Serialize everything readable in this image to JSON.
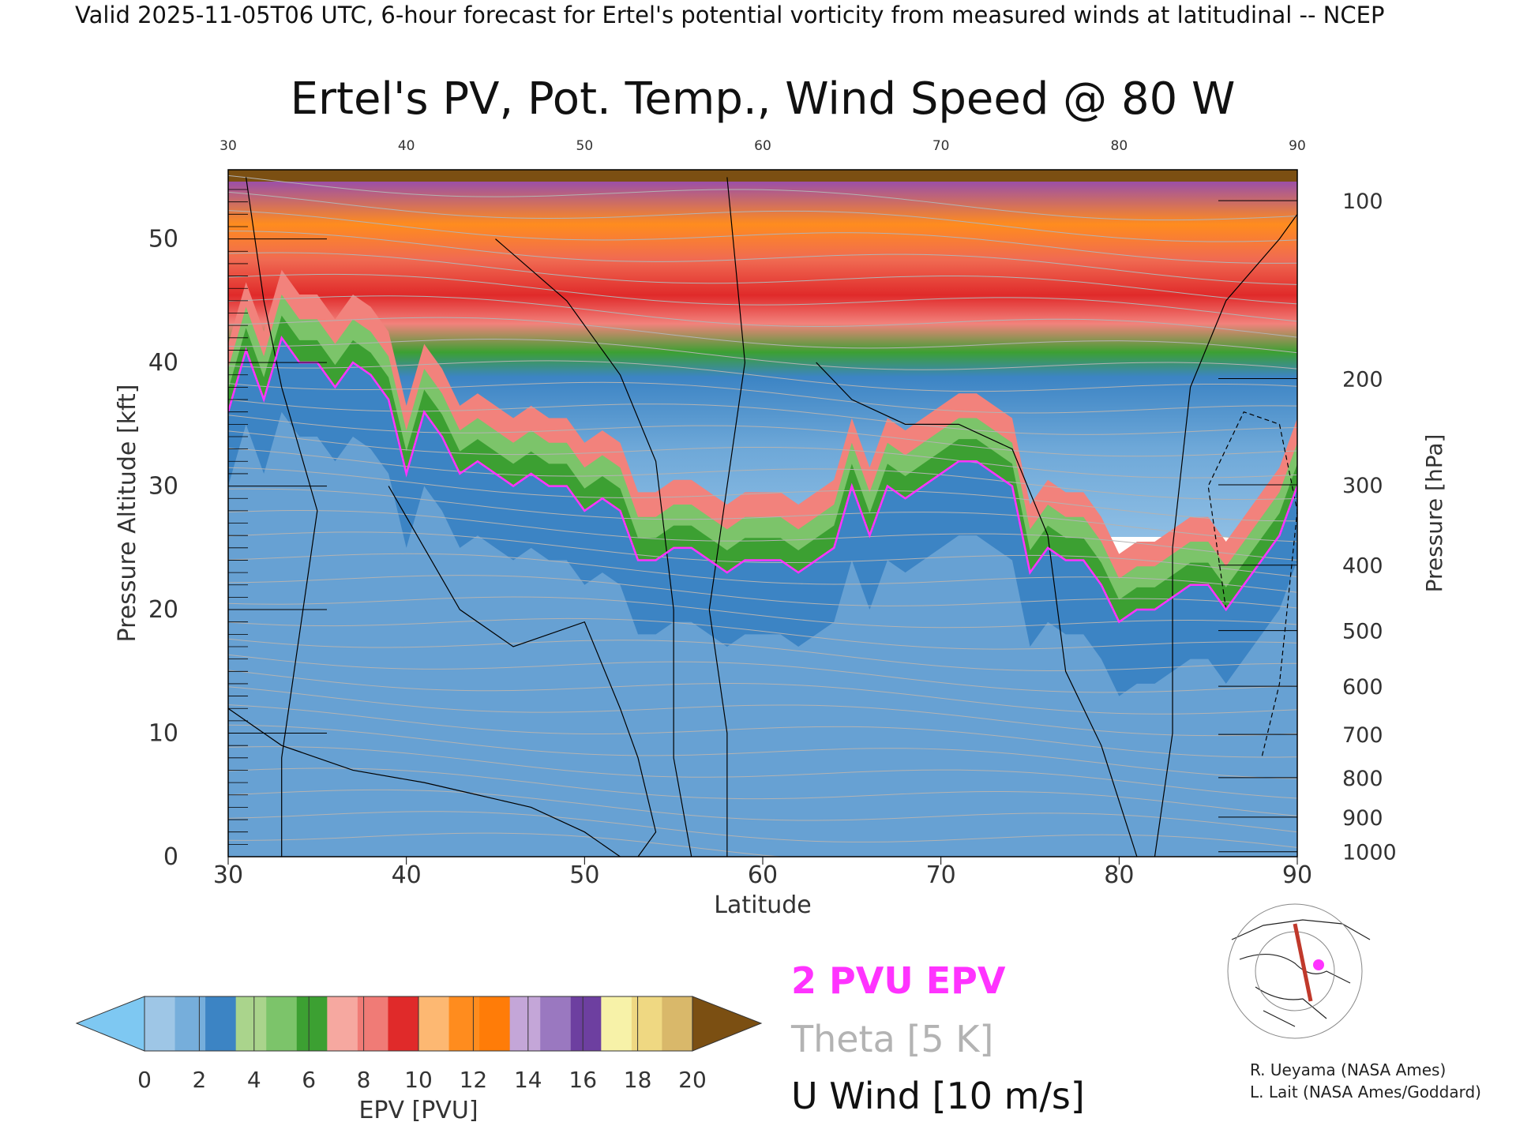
{
  "header": {
    "valid_line": "Valid 2025-11-05T06 UTC, 6-hour forecast for Ertel's potential vorticity from measured winds at latitudinal -- NCEP"
  },
  "chart_data": {
    "type": "heatmap",
    "title": "Ertel's PV, Pot. Temp., Wind Speed @ 80 W",
    "xlabel": "Latitude",
    "ylabel": "Pressure Altitude [kft]",
    "y2label": "Pressure [hPa]",
    "xlim": [
      30,
      90
    ],
    "ylim": [
      0,
      55.6
    ],
    "x_ticks": [
      30,
      40,
      50,
      60,
      70,
      80,
      90
    ],
    "y_ticks": [
      0,
      10,
      20,
      30,
      40,
      50
    ],
    "pressure_ticks": [
      {
        "hPa": 100,
        "kft": 53.1
      },
      {
        "hPa": 200,
        "kft": 38.7
      },
      {
        "hPa": 300,
        "kft": 30.1
      },
      {
        "hPa": 400,
        "kft": 23.6
      },
      {
        "hPa": 500,
        "kft": 18.3
      },
      {
        "hPa": 600,
        "kft": 13.8
      },
      {
        "hPa": 700,
        "kft": 9.9
      },
      {
        "hPa": 800,
        "kft": 6.4
      },
      {
        "hPa": 900,
        "kft": 3.2
      },
      {
        "hPa": 1000,
        "kft": 0.4
      }
    ],
    "tropopause_2pvu": {
      "lat": [
        30,
        31,
        32,
        33,
        34,
        35,
        36,
        37,
        38,
        39,
        40,
        41,
        42,
        43,
        44,
        45,
        46,
        47,
        48,
        49,
        50,
        51,
        52,
        53,
        54,
        55,
        56,
        57,
        58,
        59,
        60,
        61,
        62,
        63,
        64,
        65,
        66,
        67,
        68,
        69,
        70,
        71,
        72,
        73,
        74,
        75,
        76,
        77,
        78,
        79,
        80,
        81,
        82,
        83,
        84,
        85,
        86,
        87,
        88,
        89,
        90
      ],
      "kft": [
        36,
        41,
        37,
        42,
        40,
        40,
        38,
        40,
        39,
        37,
        31,
        36,
        34,
        31,
        32,
        31,
        30,
        31,
        30,
        30,
        28,
        29,
        28,
        24,
        24,
        25,
        25,
        24,
        23,
        24,
        24,
        24,
        23,
        24,
        25,
        30,
        26,
        30,
        29,
        30,
        31,
        32,
        32,
        31,
        30,
        23,
        25,
        24,
        24,
        22,
        19,
        20,
        20,
        21,
        22,
        22,
        20,
        22,
        24,
        26,
        30
      ]
    },
    "colorbar": {
      "label": "EPV [PVU]",
      "ticks": [
        0,
        2,
        4,
        6,
        8,
        10,
        12,
        14,
        16,
        18,
        20
      ],
      "underflow_color": "#7ec8f2",
      "overflow_color": "#7b4f12",
      "colors": [
        "#9ec6e6",
        "#76aedb",
        "#3c84c4",
        "#aad48c",
        "#7cc46a",
        "#3ca032",
        "#f6a8a0",
        "#f07b76",
        "#e02a2a",
        "#fdb872",
        "#ff8c1e",
        "#ff7c08",
        "#c4a6d8",
        "#9a78c0",
        "#6d3fa0",
        "#f7f2a8",
        "#efd882",
        "#d9b86a"
      ]
    },
    "legend": [
      {
        "label": "2 PVU EPV",
        "color": "#ff33ff"
      },
      {
        "label": "Theta [5 K]",
        "color": "#b3b3b3"
      },
      {
        "label": "U Wind [10 m/s]",
        "color": "#000000"
      }
    ],
    "grid": false
  },
  "credits": {
    "line1": "R. Ueyama (NASA Ames)",
    "line2": "L. Lait (NASA Ames/Goddard)"
  }
}
